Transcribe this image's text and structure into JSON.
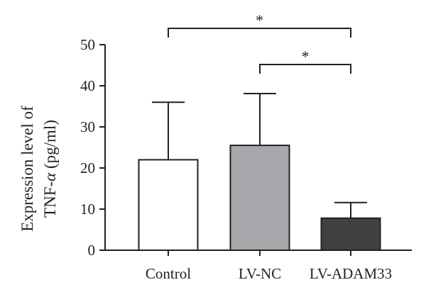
{
  "chart_data": {
    "type": "bar",
    "categories": [
      "Control",
      "LV-NC",
      "LV-ADAM33"
    ],
    "values": [
      22,
      25.5,
      7.8
    ],
    "errors": [
      14,
      12.6,
      3.8
    ],
    "bar_colors": [
      "#ffffff",
      "#a7a9ac",
      "#404041"
    ],
    "ylabel_line1": "Expression level of",
    "ylabel_line2": "TNF-",
    "ylabel_alpha": "α",
    "ylabel_unit": " (pg/ml)",
    "ylim": [
      0,
      50
    ],
    "yticks": [
      0,
      10,
      20,
      30,
      40,
      50
    ],
    "grid": false,
    "significance": [
      {
        "from": "Control",
        "to": "LV-ADAM33",
        "label": "*"
      },
      {
        "from": "LV-NC",
        "to": "LV-ADAM33",
        "label": "*"
      }
    ]
  }
}
